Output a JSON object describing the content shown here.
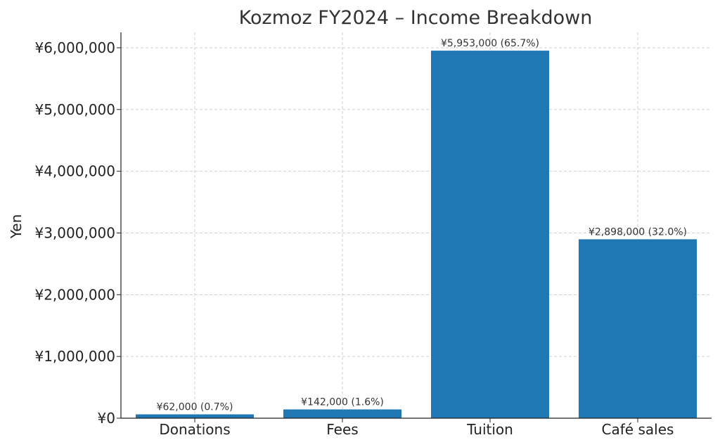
{
  "chart_data": {
    "type": "bar",
    "title": "Kozmoz FY2024 – Income Breakdown",
    "xlabel": "",
    "ylabel": "Yen",
    "categories": [
      "Donations",
      "Fees",
      "Tuition",
      "Café sales"
    ],
    "values": [
      62000,
      142000,
      5953000,
      2898000
    ],
    "data_labels": [
      "¥62,000  (0.7%)",
      "¥142,000  (1.6%)",
      "¥5,953,000  (65.7%)",
      "¥2,898,000  (32.0%)"
    ],
    "ylim": [
      0,
      6250000
    ],
    "yticks": [
      0,
      1000000,
      2000000,
      3000000,
      4000000,
      5000000,
      6000000
    ],
    "ytick_labels": [
      "¥0",
      "¥1,000,000",
      "¥2,000,000",
      "¥3,000,000",
      "¥4,000,000",
      "¥5,000,000",
      "¥6,000,000"
    ],
    "grid": true,
    "bar_color": "#1f77b4"
  }
}
